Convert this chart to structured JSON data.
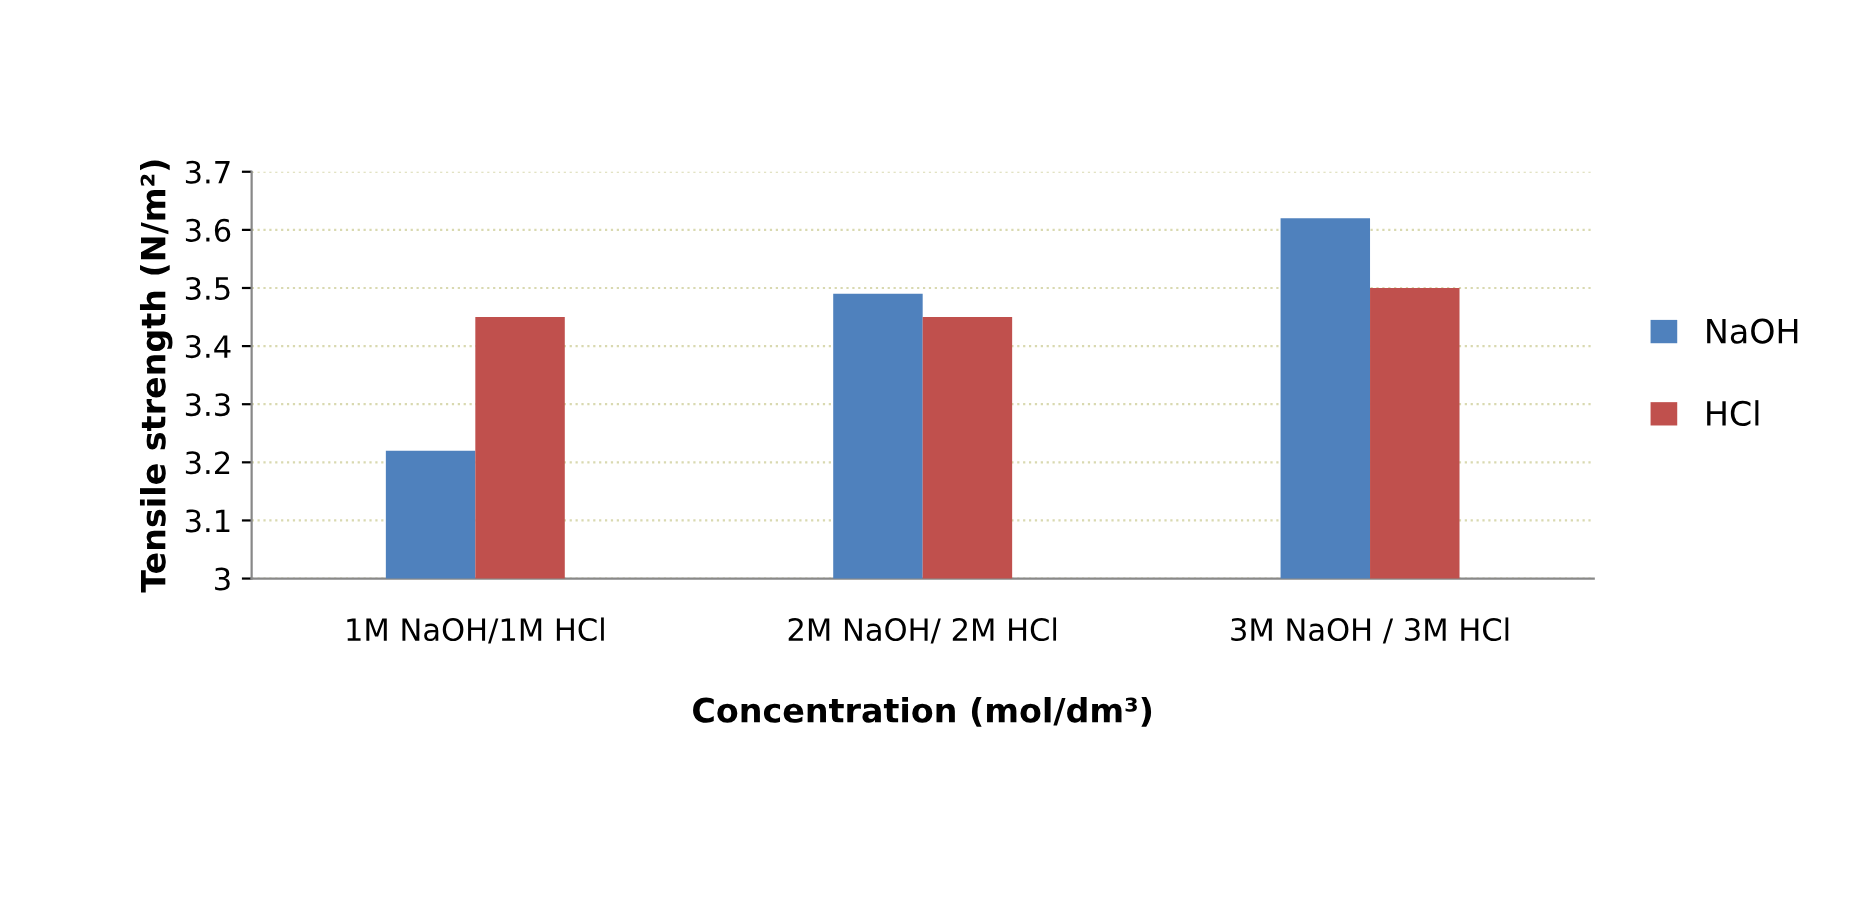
{
  "chart_data": {
    "type": "bar",
    "xlabel": "Concentration (mol/dm³)",
    "ylabel": "Tensile strength (N/m²)",
    "categories": [
      "1M NaOH/1M HCl",
      "2M NaOH/ 2M HCl",
      "3M NaOH / 3M HCl"
    ],
    "series": [
      {
        "name": "NaOH",
        "color": "#4f81bd",
        "values": [
          3.22,
          3.49,
          3.62
        ]
      },
      {
        "name": "HCl",
        "color": "#c0504d",
        "values": [
          3.45,
          3.45,
          3.5
        ]
      }
    ],
    "ylim": [
      3,
      3.7
    ],
    "yticks": [
      3,
      3.1,
      3.2,
      3.3,
      3.4,
      3.5,
      3.6,
      3.7
    ],
    "grid": "y",
    "legend": "right"
  }
}
